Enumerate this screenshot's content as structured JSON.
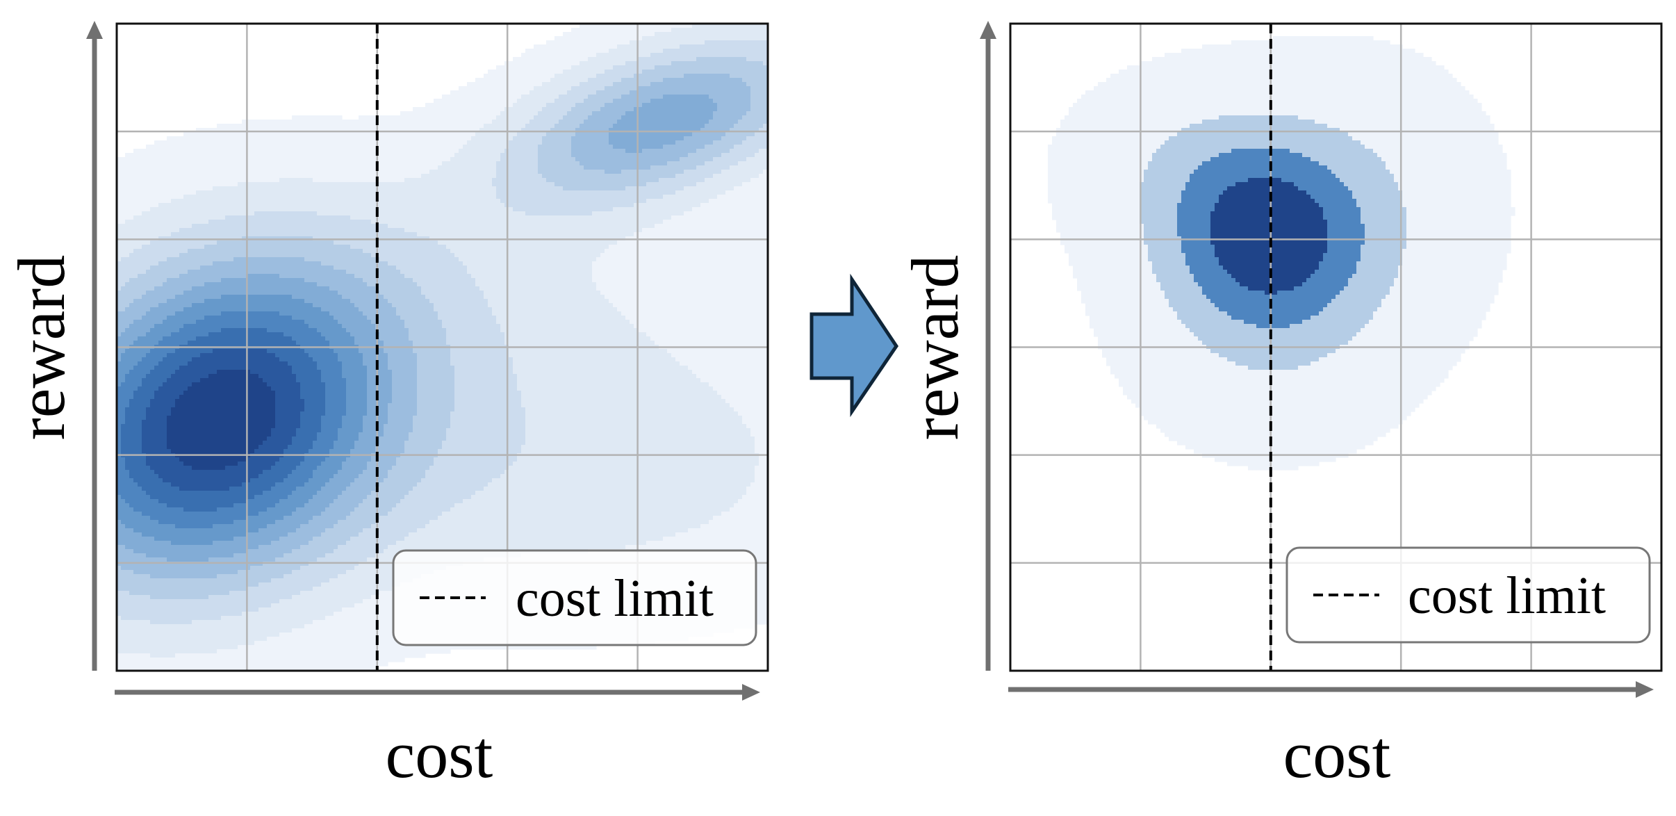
{
  "figure": {
    "colors": {
      "density": [
        "#eef3fa",
        "#dfe9f4",
        "#ccdcee",
        "#b5cde6",
        "#9cbddf",
        "#82acd6",
        "#6699cb",
        "#4e85c0",
        "#396fb0",
        "#2a589e",
        "#1f4489"
      ],
      "grid": "#b3b3b3",
      "cost_limit_line": "#000000",
      "axis_arrow": "#707070",
      "arrow_fill": "#6098cc",
      "arrow_stroke": "#0f2538",
      "legend_border": "#777777"
    }
  },
  "transition_arrow": {
    "icon": "right-block-arrow-icon"
  },
  "chart_data": [
    {
      "type": "kde-contour",
      "panel": "before",
      "xlabel": "cost",
      "ylabel": "reward",
      "xlim": [
        0,
        5
      ],
      "ylim": [
        0,
        6
      ],
      "grid": true,
      "tick_labels": false,
      "cost_limit_x": 2,
      "levels": 11,
      "modes": [
        {
          "x": 0.75,
          "y": 2.3,
          "weight": 1.0,
          "sx": 0.95,
          "sy": 1.05,
          "rho": 0.22
        },
        {
          "x": 4.2,
          "y": 5.1,
          "weight": 0.55,
          "sx": 0.85,
          "sy": 0.55,
          "rho": 0.5
        },
        {
          "x": 3.5,
          "y": 1.9,
          "weight": 0.18,
          "sx": 1.6,
          "sy": 0.9,
          "rho": 0.0
        },
        {
          "x": 2.6,
          "y": 3.5,
          "weight": 0.1,
          "sx": 1.5,
          "sy": 0.7,
          "rho": 0.0
        }
      ],
      "legend": {
        "label": "cost limit",
        "placement": "lower right"
      }
    },
    {
      "type": "kde-contour",
      "panel": "after",
      "xlabel": "cost",
      "ylabel": "reward",
      "xlim": [
        0,
        5
      ],
      "ylim": [
        0,
        6
      ],
      "grid": true,
      "tick_labels": false,
      "cost_limit_x": 2,
      "levels": 4,
      "modes": [
        {
          "x": 1.95,
          "y": 4.0,
          "weight": 1.0,
          "sx": 0.55,
          "sy": 0.6,
          "rho": 0.0
        },
        {
          "x": 1.5,
          "y": 4.7,
          "weight": 0.25,
          "sx": 0.6,
          "sy": 0.5,
          "rho": 0.0
        },
        {
          "x": 2.7,
          "y": 4.3,
          "weight": 0.22,
          "sx": 0.6,
          "sy": 0.8,
          "rho": 0.0
        },
        {
          "x": 2.0,
          "y": 3.0,
          "weight": 0.2,
          "sx": 0.6,
          "sy": 0.6,
          "rho": 0.0
        }
      ],
      "legend": {
        "label": "cost limit",
        "placement": "lower right"
      }
    }
  ]
}
